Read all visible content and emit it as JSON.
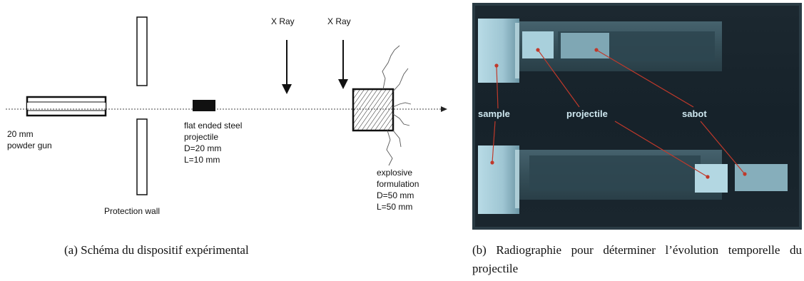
{
  "panel_a": {
    "gun_label": [
      "20 mm",
      "powder gun"
    ],
    "projectile_label": [
      "flat ended steel",
      "projectile",
      "D=20 mm",
      "L=10 mm"
    ],
    "wall_label": "Protection wall",
    "xray_labels": [
      "X Ray",
      "X Ray"
    ],
    "explosive_label": [
      "explosive",
      "formulation",
      "D=50 mm",
      "L=50 mm"
    ]
  },
  "panel_b": {
    "labels": [
      "sample",
      "projectile",
      "sabot"
    ]
  },
  "captions": {
    "a": "(a) Schéma du dispositif expérimental",
    "b": "(b) Radiographie pour déterminer l’évolution temporelle du projectile"
  }
}
